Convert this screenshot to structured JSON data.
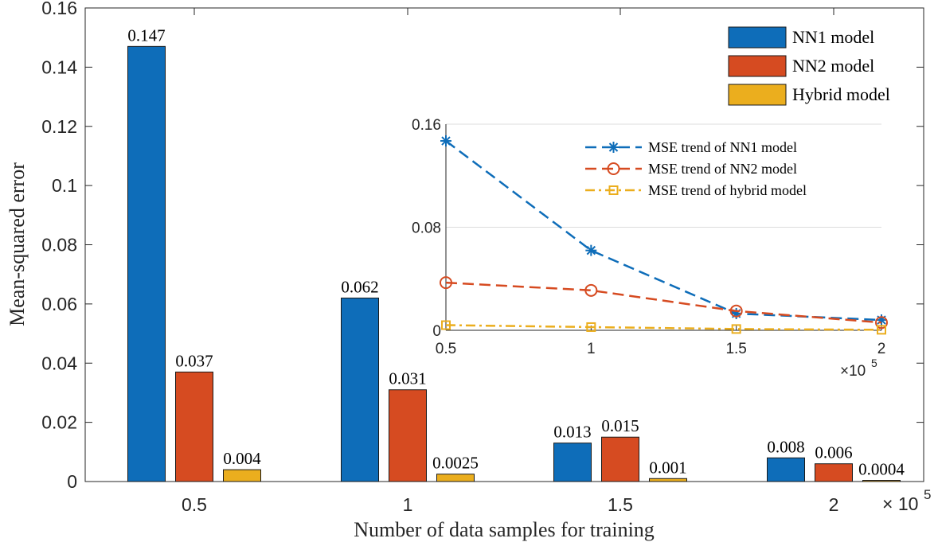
{
  "chart_data": [
    {
      "type": "bar",
      "categories": [
        "0.5",
        "1",
        "1.5",
        "2"
      ],
      "x_values": [
        0.5,
        1,
        1.5,
        2
      ],
      "x_multiplier_label": "× 10",
      "x_multiplier_exponent": "5",
      "series": [
        {
          "name": "NN1 model",
          "color": "#0E6DB9",
          "values": [
            0.147,
            0.062,
            0.013,
            0.008
          ],
          "labels": [
            "0.147",
            "0.062",
            "0.013",
            "0.008"
          ]
        },
        {
          "name": "NN2 model",
          "color": "#D64B21",
          "values": [
            0.037,
            0.031,
            0.015,
            0.006
          ],
          "labels": [
            "0.037",
            "0.031",
            "0.015",
            "0.006"
          ]
        },
        {
          "name": "Hybrid model",
          "color": "#EBAE1E",
          "values": [
            0.004,
            0.0025,
            0.001,
            0.0004
          ],
          "labels": [
            "0.004",
            "0.0025",
            "0.001",
            "0.0004"
          ]
        }
      ],
      "xlabel": "Number of data samples for training",
      "ylabel": "Mean-squared error",
      "ylim": [
        0,
        0.16
      ],
      "yticks": [
        "0",
        "0.02",
        "0.04",
        "0.06",
        "0.08",
        "0.1",
        "0.12",
        "0.14",
        "0.16"
      ],
      "legend_position": "top-right",
      "grid": false
    },
    {
      "type": "line",
      "x": [
        0.5,
        1,
        1.5,
        2
      ],
      "xticks": [
        "0.5",
        "1",
        "1.5",
        "2"
      ],
      "x_multiplier_label": "×10",
      "x_multiplier_exponent": "5",
      "yticks": [
        "0",
        "0.08",
        "0.16"
      ],
      "ylim": [
        0,
        0.16
      ],
      "xlim": [
        0.5,
        2
      ],
      "series": [
        {
          "name": "MSE trend of NN1 model",
          "color": "#0E6DB9",
          "marker": "asterisk",
          "dash": "dashed",
          "values": [
            0.147,
            0.062,
            0.013,
            0.008
          ]
        },
        {
          "name": "MSE trend of NN2 model",
          "color": "#D64B21",
          "marker": "circle",
          "dash": "dashed",
          "values": [
            0.037,
            0.031,
            0.015,
            0.006
          ]
        },
        {
          "name": "MSE trend of hybrid model",
          "color": "#EBAE1E",
          "marker": "square",
          "dash": "dashdot",
          "values": [
            0.004,
            0.0025,
            0.001,
            0.0004
          ]
        }
      ],
      "legend_position": "top-right",
      "grid": "y-major"
    }
  ]
}
